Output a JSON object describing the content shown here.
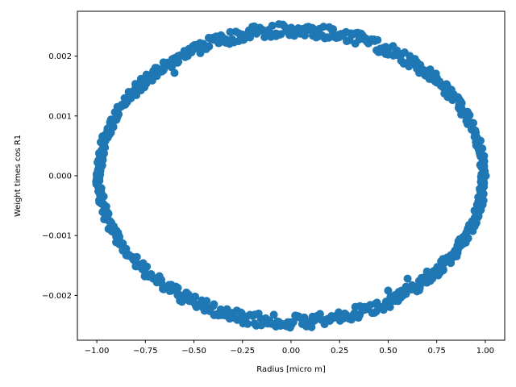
{
  "chart_data": {
    "type": "scatter",
    "title": "",
    "xlabel": "Radius [micro m]",
    "ylabel": "Weight times  cos  R1",
    "xlim": [
      -1.1,
      1.1
    ],
    "ylim": [
      -0.00275,
      0.00275
    ],
    "x_ticks": [
      -1.0,
      -0.75,
      -0.5,
      -0.25,
      0.0,
      0.25,
      0.5,
      0.75,
      1.0
    ],
    "x_tick_labels": [
      "−1.00",
      "−0.75",
      "−0.50",
      "−0.25",
      "0.00",
      "0.25",
      "0.50",
      "0.75",
      "1.00"
    ],
    "y_ticks": [
      -0.002,
      -0.001,
      0.0,
      0.001,
      0.002
    ],
    "y_tick_labels": [
      "−0.002",
      "−0.001",
      "0.000",
      "0.001",
      "0.002"
    ],
    "grid": false,
    "series": [
      {
        "marker_color": "#1f77b4",
        "shape": "elliptical ring",
        "x_semi_axis_range": [
          0.975,
          1.005
        ],
        "y_semi_axis_range": [
          0.00233,
          0.00255
        ],
        "sample_points": [
          {
            "x": -1.0,
            "y": 0.0
          },
          {
            "x": -0.75,
            "y": 0.00164
          },
          {
            "x": -0.5,
            "y": 0.00212
          },
          {
            "x": -0.25,
            "y": 0.00236
          },
          {
            "x": 0.0,
            "y": 0.00245
          },
          {
            "x": 0.25,
            "y": 0.00236
          },
          {
            "x": 0.5,
            "y": 0.00212
          },
          {
            "x": 0.75,
            "y": 0.00164
          },
          {
            "x": 1.0,
            "y": 0.0
          },
          {
            "x": 0.75,
            "y": -0.00164
          },
          {
            "x": 0.5,
            "y": -0.00212
          },
          {
            "x": 0.25,
            "y": -0.00236
          },
          {
            "x": 0.0,
            "y": -0.00245
          },
          {
            "x": -0.25,
            "y": -0.00236
          },
          {
            "x": -0.5,
            "y": -0.00212
          },
          {
            "x": -0.75,
            "y": -0.00164
          },
          {
            "x": -0.6,
            "y": 0.00172
          },
          {
            "x": 0.6,
            "y": -0.00172
          },
          {
            "x": 0.7,
            "y": -0.0016
          },
          {
            "x": 0.5,
            "y": -0.00192
          }
        ]
      }
    ]
  }
}
